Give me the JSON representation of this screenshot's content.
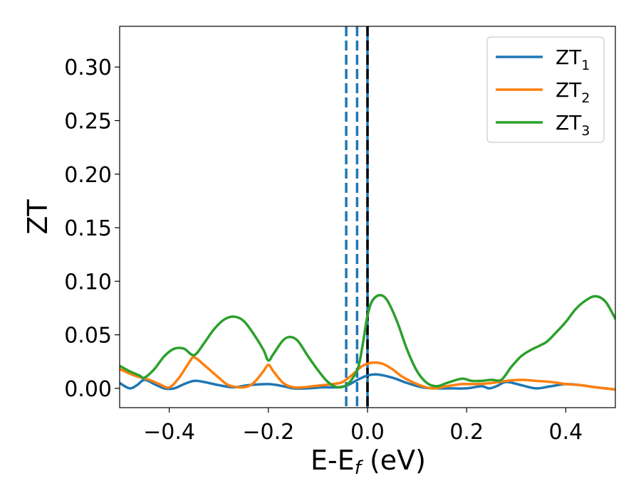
{
  "chart_data": {
    "type": "line",
    "xlabel": "E-E",
    "xlabel_sub": "f",
    "xlabel_unit": " (eV)",
    "ylabel": "ZT",
    "xlim": [
      -0.5,
      0.5
    ],
    "ylim": [
      -0.018,
      0.338
    ],
    "xticks": [
      -0.4,
      -0.2,
      0.0,
      0.2,
      0.4
    ],
    "xtick_labels": [
      "−0.4",
      "−0.2",
      "0.0",
      "0.2",
      "0.4"
    ],
    "yticks": [
      0.0,
      0.05,
      0.1,
      0.15,
      0.2,
      0.25,
      0.3
    ],
    "ytick_labels": [
      "0.00",
      "0.05",
      "0.10",
      "0.15",
      "0.20",
      "0.25",
      "0.30"
    ],
    "grid": false,
    "legend_position": "top-right",
    "vlines": [
      {
        "x": -0.043,
        "style": "dashed",
        "color": "#1f77b4"
      },
      {
        "x": -0.021,
        "style": "dashed",
        "color": "#1f77b4"
      },
      {
        "x": 0.0,
        "style": "solid",
        "color": "#1f77b4"
      },
      {
        "x": 0.0,
        "style": "dashed",
        "color": "#000000"
      }
    ],
    "series": [
      {
        "name": "ZT",
        "name_sub": "1",
        "color": "#1f77b4",
        "points": [
          [
            -0.5,
            0.005
          ],
          [
            -0.48,
            0.0
          ],
          [
            -0.465,
            0.003
          ],
          [
            -0.45,
            0.008
          ],
          [
            -0.43,
            0.004
          ],
          [
            -0.41,
            0.0
          ],
          [
            -0.39,
            0.0
          ],
          [
            -0.37,
            0.004
          ],
          [
            -0.35,
            0.007
          ],
          [
            -0.33,
            0.006
          ],
          [
            -0.3,
            0.003
          ],
          [
            -0.27,
            0.001
          ],
          [
            -0.24,
            0.003
          ],
          [
            -0.2,
            0.004
          ],
          [
            -0.17,
            0.002
          ],
          [
            -0.15,
            0.0
          ],
          [
            -0.12,
            0.0
          ],
          [
            -0.09,
            0.001
          ],
          [
            -0.06,
            0.001
          ],
          [
            -0.04,
            0.003
          ],
          [
            -0.02,
            0.008
          ],
          [
            0.0,
            0.012
          ],
          [
            0.02,
            0.013
          ],
          [
            0.05,
            0.01
          ],
          [
            0.08,
            0.005
          ],
          [
            0.11,
            0.001
          ],
          [
            0.14,
            0.0
          ],
          [
            0.17,
            0.0
          ],
          [
            0.2,
            0.0
          ],
          [
            0.23,
            0.002
          ],
          [
            0.245,
            0.0
          ],
          [
            0.26,
            0.002
          ],
          [
            0.28,
            0.006
          ],
          [
            0.31,
            0.003
          ],
          [
            0.34,
            0.0
          ],
          [
            0.37,
            0.002
          ],
          [
            0.4,
            0.004
          ],
          [
            0.43,
            0.003
          ],
          [
            0.46,
            0.001
          ],
          [
            0.5,
            -0.001
          ]
        ]
      },
      {
        "name": "ZT",
        "name_sub": "2",
        "color": "#ff7f0e",
        "points": [
          [
            -0.5,
            0.018
          ],
          [
            -0.47,
            0.012
          ],
          [
            -0.44,
            0.008
          ],
          [
            -0.42,
            0.004
          ],
          [
            -0.4,
            0.001
          ],
          [
            -0.38,
            0.01
          ],
          [
            -0.36,
            0.024
          ],
          [
            -0.35,
            0.029
          ],
          [
            -0.33,
            0.022
          ],
          [
            -0.3,
            0.01
          ],
          [
            -0.28,
            0.003
          ],
          [
            -0.25,
            0.001
          ],
          [
            -0.23,
            0.005
          ],
          [
            -0.21,
            0.016
          ],
          [
            -0.2,
            0.022
          ],
          [
            -0.19,
            0.016
          ],
          [
            -0.17,
            0.005
          ],
          [
            -0.15,
            0.001
          ],
          [
            -0.13,
            0.001
          ],
          [
            -0.11,
            0.002
          ],
          [
            -0.09,
            0.003
          ],
          [
            -0.07,
            0.004
          ],
          [
            -0.05,
            0.006
          ],
          [
            -0.03,
            0.013
          ],
          [
            -0.01,
            0.021
          ],
          [
            0.01,
            0.024
          ],
          [
            0.03,
            0.023
          ],
          [
            0.05,
            0.018
          ],
          [
            0.07,
            0.011
          ],
          [
            0.1,
            0.004
          ],
          [
            0.13,
            0.0
          ],
          [
            0.16,
            0.002
          ],
          [
            0.19,
            0.004
          ],
          [
            0.22,
            0.004
          ],
          [
            0.25,
            0.005
          ],
          [
            0.28,
            0.007
          ],
          [
            0.31,
            0.008
          ],
          [
            0.34,
            0.007
          ],
          [
            0.37,
            0.006
          ],
          [
            0.4,
            0.004
          ],
          [
            0.43,
            0.003
          ],
          [
            0.46,
            0.001
          ],
          [
            0.5,
            -0.001
          ]
        ]
      },
      {
        "name": "ZT",
        "name_sub": "3",
        "color": "#2ca02c",
        "points": [
          [
            -0.5,
            0.021
          ],
          [
            -0.48,
            0.016
          ],
          [
            -0.46,
            0.012
          ],
          [
            -0.45,
            0.01
          ],
          [
            -0.43,
            0.018
          ],
          [
            -0.41,
            0.03
          ],
          [
            -0.39,
            0.037
          ],
          [
            -0.37,
            0.037
          ],
          [
            -0.35,
            0.031
          ],
          [
            -0.33,
            0.042
          ],
          [
            -0.31,
            0.055
          ],
          [
            -0.29,
            0.064
          ],
          [
            -0.27,
            0.067
          ],
          [
            -0.25,
            0.063
          ],
          [
            -0.23,
            0.051
          ],
          [
            -0.21,
            0.036
          ],
          [
            -0.2,
            0.026
          ],
          [
            -0.19,
            0.032
          ],
          [
            -0.17,
            0.045
          ],
          [
            -0.155,
            0.048
          ],
          [
            -0.14,
            0.044
          ],
          [
            -0.12,
            0.03
          ],
          [
            -0.1,
            0.017
          ],
          [
            -0.08,
            0.006
          ],
          [
            -0.06,
            0.001
          ],
          [
            -0.04,
            0.004
          ],
          [
            -0.02,
            0.018
          ],
          [
            -0.01,
            0.04
          ],
          [
            0.0,
            0.068
          ],
          [
            0.01,
            0.082
          ],
          [
            0.025,
            0.087
          ],
          [
            0.04,
            0.082
          ],
          [
            0.06,
            0.062
          ],
          [
            0.08,
            0.036
          ],
          [
            0.1,
            0.016
          ],
          [
            0.12,
            0.005
          ],
          [
            0.14,
            0.002
          ],
          [
            0.16,
            0.005
          ],
          [
            0.19,
            0.009
          ],
          [
            0.21,
            0.007
          ],
          [
            0.23,
            0.007
          ],
          [
            0.25,
            0.008
          ],
          [
            0.27,
            0.008
          ],
          [
            0.29,
            0.02
          ],
          [
            0.31,
            0.03
          ],
          [
            0.33,
            0.036
          ],
          [
            0.36,
            0.043
          ],
          [
            0.38,
            0.052
          ],
          [
            0.4,
            0.062
          ],
          [
            0.42,
            0.074
          ],
          [
            0.44,
            0.082
          ],
          [
            0.46,
            0.086
          ],
          [
            0.48,
            0.081
          ],
          [
            0.5,
            0.065
          ]
        ]
      }
    ]
  }
}
